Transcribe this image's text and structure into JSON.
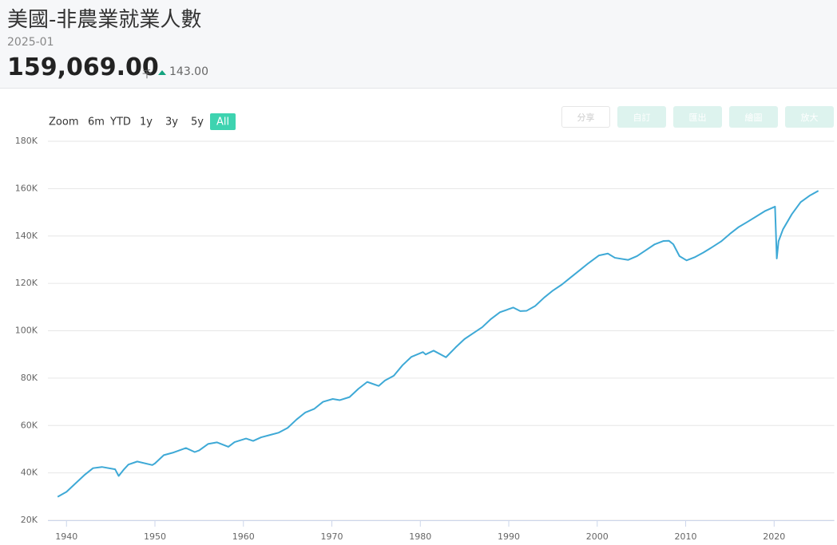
{
  "header": {
    "title": "美國-非農業就業人數",
    "date": "2025-01",
    "value": "159,069.00",
    "unit": "千",
    "change": "143.00"
  },
  "range_selector": {
    "label": "Zoom",
    "buttons": [
      "6m",
      "YTD",
      "1y",
      "3y",
      "5y",
      "All"
    ],
    "selected": 5
  },
  "toolbar": [
    "分享",
    "自訂",
    "匯出",
    "繪圖",
    "放大"
  ],
  "chart_data": {
    "type": "line",
    "x": [
      1939,
      1940,
      1941,
      1942,
      1943,
      1944,
      1945.5,
      1945.9,
      1946.5,
      1947,
      1948,
      1949.7,
      1950,
      1951,
      1952,
      1953.5,
      1954.5,
      1955,
      1956,
      1957,
      1958.3,
      1959,
      1960.3,
      1961.1,
      1962,
      1963,
      1964,
      1965,
      1966,
      1967,
      1968,
      1969,
      1970.1,
      1970.9,
      1972,
      1973,
      1974,
      1975.3,
      1976,
      1977,
      1978,
      1979,
      1980.3,
      1980.6,
      1981.5,
      1982.9,
      1984,
      1985,
      1986,
      1987,
      1988,
      1989,
      1990.5,
      1991.3,
      1992,
      1993,
      1994,
      1995,
      1996,
      1997,
      1998,
      1999,
      2000.2,
      2001.2,
      2002,
      2003.5,
      2004.5,
      2005.5,
      2006.5,
      2007.5,
      2008.1,
      2008.6,
      2009.3,
      2010.1,
      2011,
      2012,
      2013,
      2014,
      2015,
      2016,
      2017,
      2018,
      2019,
      2020.1,
      2020.3,
      2020.5,
      2021,
      2022,
      2023,
      2024,
      2025
    ],
    "values": [
      29900,
      32000,
      35500,
      39000,
      42000,
      42500,
      41500,
      38700,
      41500,
      43500,
      44800,
      43300,
      44000,
      47500,
      48500,
      50500,
      48800,
      49500,
      52200,
      52900,
      51000,
      53000,
      54500,
      53500,
      55000,
      56000,
      57000,
      59000,
      62500,
      65500,
      67000,
      70000,
      71200,
      70700,
      72000,
      75500,
      78400,
      76700,
      79000,
      81000,
      85500,
      89000,
      91000,
      90000,
      91600,
      88800,
      93000,
      96500,
      99000,
      101500,
      105000,
      107800,
      109800,
      108300,
      108400,
      110500,
      114000,
      117000,
      119500,
      122500,
      125500,
      128500,
      131800,
      132600,
      130800,
      129900,
      131500,
      134000,
      136500,
      137900,
      138000,
      136500,
      131500,
      129700,
      131000,
      133000,
      135300,
      137700,
      140900,
      143800,
      146000,
      148300,
      150600,
      152400,
      130500,
      137800,
      142800,
      149200,
      154300,
      157000,
      159069
    ],
    "color": "#3ea9d6",
    "xlim": [
      1937.9,
      2026.8
    ],
    "xticks": [
      1940,
      1950,
      1960,
      1970,
      1980,
      1990,
      2000,
      2010,
      2020
    ],
    "ylim": [
      20000,
      180000
    ],
    "yticks": [
      {
        "value": 20000,
        "label": "20K"
      },
      {
        "value": 40000,
        "label": "40K"
      },
      {
        "value": 60000,
        "label": "60K"
      },
      {
        "value": 80000,
        "label": "80K"
      },
      {
        "value": 100000,
        "label": "100K"
      },
      {
        "value": 120000,
        "label": "120K"
      },
      {
        "value": 140000,
        "label": "140K"
      },
      {
        "value": 160000,
        "label": "160K"
      },
      {
        "value": 180000,
        "label": "180K"
      }
    ],
    "grid": true
  }
}
